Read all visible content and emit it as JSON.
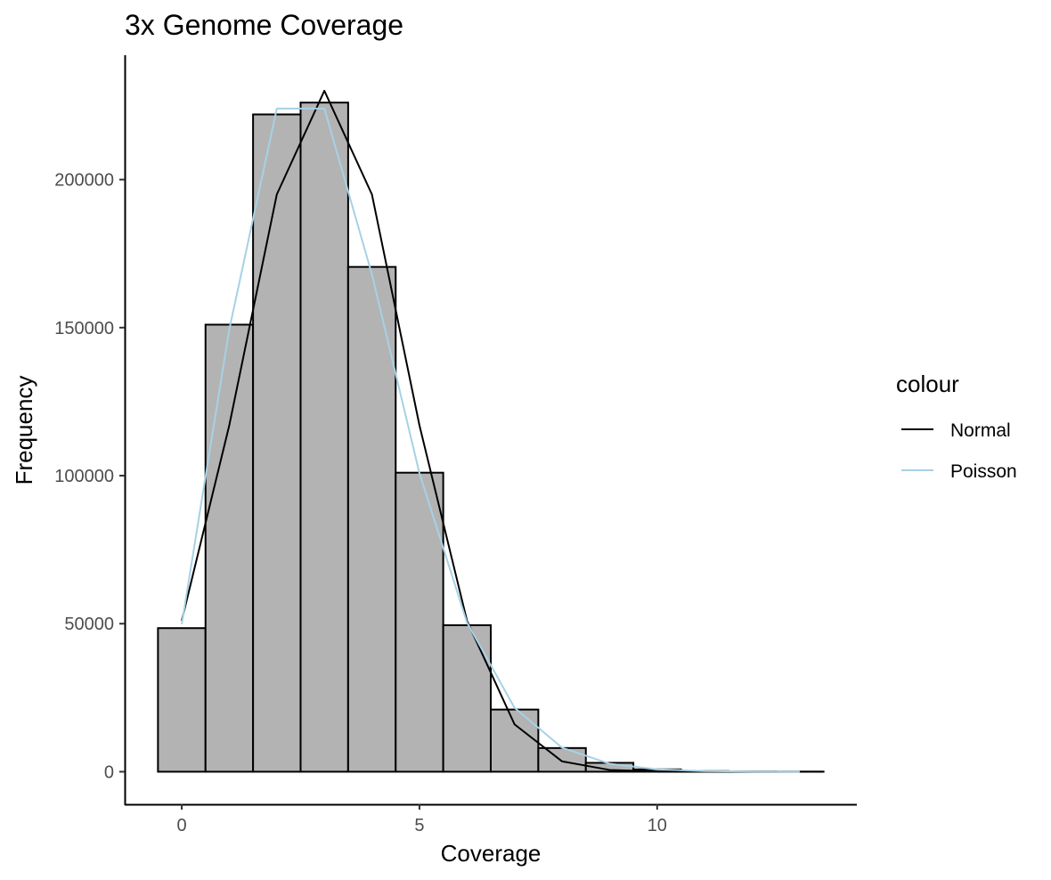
{
  "chart_data": {
    "type": "bar",
    "title": "3x Genome Coverage",
    "xlabel": "Coverage",
    "ylabel": "Frequency",
    "xlim": [
      -1.2,
      14.2
    ],
    "ylim": [
      -11000,
      242000
    ],
    "x_ticks": [
      0,
      5,
      10
    ],
    "x_tick_labels": [
      "0",
      "5",
      "10"
    ],
    "y_ticks": [
      0,
      50000,
      100000,
      150000,
      200000
    ],
    "y_tick_labels": [
      "0",
      "50000",
      "100000",
      "150000",
      "200000"
    ],
    "grid": false,
    "histogram": {
      "bin_width": 1,
      "bin_centers": [
        0,
        1,
        2,
        3,
        4,
        5,
        6,
        7,
        8,
        9,
        10,
        11,
        12,
        13
      ],
      "counts": [
        48500,
        151000,
        222000,
        226000,
        170500,
        101000,
        49500,
        21000,
        8000,
        3000,
        800,
        200,
        60,
        20
      ],
      "fill": "#b3b3b3",
      "stroke": "#000000"
    },
    "legend": {
      "title": "colour",
      "position": "right"
    },
    "series": [
      {
        "name": "Normal",
        "color": "#000000",
        "x": [
          0,
          1,
          2,
          3,
          4,
          5,
          6,
          7,
          8,
          9,
          10,
          11,
          12,
          13.5
        ],
        "values": [
          51000,
          117000,
          195000,
          230000,
          195000,
          117000,
          51000,
          16000,
          3500,
          600,
          100,
          10,
          0,
          0
        ]
      },
      {
        "name": "Poisson",
        "color": "#a6d1e6",
        "x": [
          0,
          1,
          2,
          3,
          4,
          5,
          6,
          7,
          8,
          9,
          10,
          11,
          12,
          13
        ],
        "values": [
          49800,
          149400,
          224000,
          224000,
          168000,
          100800,
          50400,
          21600,
          8100,
          2700,
          810,
          220,
          55,
          13
        ]
      }
    ]
  }
}
